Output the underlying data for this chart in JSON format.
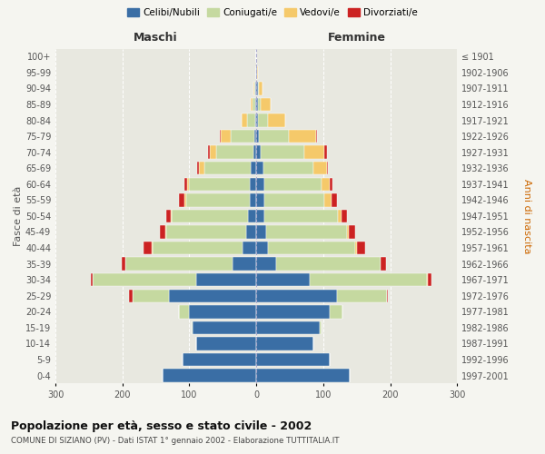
{
  "age_groups": [
    "0-4",
    "5-9",
    "10-14",
    "15-19",
    "20-24",
    "25-29",
    "30-34",
    "35-39",
    "40-44",
    "45-49",
    "50-54",
    "55-59",
    "60-64",
    "65-69",
    "70-74",
    "75-79",
    "80-84",
    "85-89",
    "90-94",
    "95-99",
    "100+"
  ],
  "birth_years": [
    "1997-2001",
    "1992-1996",
    "1987-1991",
    "1982-1986",
    "1977-1981",
    "1972-1976",
    "1967-1971",
    "1962-1966",
    "1957-1961",
    "1952-1956",
    "1947-1951",
    "1942-1946",
    "1937-1941",
    "1932-1936",
    "1927-1931",
    "1922-1926",
    "1917-1921",
    "1912-1916",
    "1907-1911",
    "1902-1906",
    "≤ 1901"
  ],
  "males": {
    "celibe": [
      140,
      110,
      90,
      95,
      100,
      130,
      90,
      35,
      20,
      15,
      12,
      10,
      10,
      8,
      5,
      3,
      2,
      1,
      1,
      0,
      0
    ],
    "coniugato": [
      0,
      0,
      0,
      2,
      15,
      55,
      155,
      160,
      135,
      120,
      115,
      95,
      90,
      70,
      55,
      35,
      12,
      5,
      2,
      0,
      0
    ],
    "vedovo": [
      0,
      0,
      0,
      0,
      0,
      0,
      0,
      1,
      1,
      1,
      1,
      2,
      3,
      8,
      10,
      15,
      8,
      3,
      1,
      0,
      0
    ],
    "divorziato": [
      0,
      0,
      0,
      0,
      1,
      5,
      2,
      5,
      12,
      8,
      7,
      8,
      5,
      2,
      2,
      1,
      0,
      0,
      0,
      0,
      0
    ]
  },
  "females": {
    "nubile": [
      140,
      110,
      85,
      95,
      110,
      120,
      80,
      30,
      18,
      15,
      12,
      12,
      12,
      10,
      7,
      4,
      3,
      2,
      2,
      1,
      0
    ],
    "coniugata": [
      0,
      0,
      0,
      2,
      18,
      75,
      175,
      155,
      130,
      120,
      110,
      90,
      85,
      75,
      65,
      45,
      15,
      5,
      2,
      0,
      0
    ],
    "vedova": [
      0,
      0,
      0,
      0,
      0,
      0,
      1,
      1,
      2,
      3,
      5,
      10,
      12,
      20,
      30,
      40,
      25,
      15,
      5,
      2,
      0
    ],
    "divorziata": [
      0,
      0,
      0,
      0,
      1,
      2,
      5,
      8,
      12,
      10,
      8,
      8,
      5,
      2,
      3,
      1,
      0,
      0,
      0,
      0,
      0
    ]
  },
  "colors": {
    "celibe": "#3A6EA5",
    "coniugato": "#C5D9A0",
    "vedovo": "#F5C96A",
    "divorziato": "#CC2222"
  },
  "xlim": 300,
  "title": "Popolazione per età, sesso e stato civile - 2002",
  "subtitle": "COMUNE DI SIZIANO (PV) - Dati ISTAT 1° gennaio 2002 - Elaborazione TUTTITALIA.IT",
  "ylabel_left": "Fasce di età",
  "ylabel_right": "Anni di nascita",
  "xlabel_left": "Maschi",
  "xlabel_right": "Femmine",
  "legend_labels": [
    "Celibi/Nubili",
    "Coniugati/e",
    "Vedovi/e",
    "Divorziati/e"
  ],
  "background_color": "#f5f5f0",
  "plot_bg": "#e8e8e0",
  "grid_color": "#ffffff"
}
